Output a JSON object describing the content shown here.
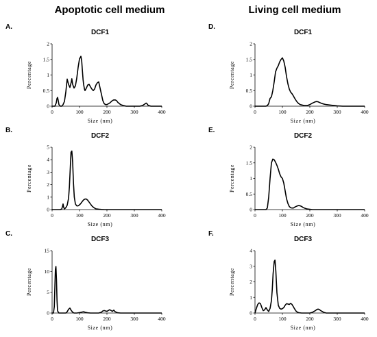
{
  "column_titles": {
    "left": "Apoptotic cell medium",
    "right": "Living cell medium"
  },
  "chart_data": [
    {
      "id": "A",
      "letter": "A.",
      "title": "DCF1",
      "type": "line",
      "xlabel": "Size (nm)",
      "ylabel": "Percentage",
      "xlim": [
        0,
        400
      ],
      "xticks": [
        0,
        100,
        200,
        300,
        400
      ],
      "ylim": [
        0,
        2
      ],
      "yticks": [
        0,
        0.5,
        1,
        1.5,
        2
      ],
      "ytick_labels": [
        "0",
        "0.5",
        "1",
        "1.5",
        "2"
      ],
      "series": [
        {
          "x": [
            0,
            10,
            15,
            18,
            20,
            22,
            25,
            30,
            35,
            40,
            45,
            50,
            55,
            60,
            65,
            70,
            72,
            75,
            80,
            85,
            90,
            95,
            100,
            105,
            108,
            110,
            113,
            115,
            118,
            120,
            125,
            130,
            135,
            140,
            145,
            150,
            155,
            160,
            165,
            170,
            175,
            180,
            185,
            190,
            195,
            200,
            210,
            220,
            225,
            230,
            235,
            240,
            250,
            260,
            270,
            280,
            290,
            300,
            320,
            330,
            340,
            343,
            346,
            350,
            360,
            380,
            400
          ],
          "y": [
            0,
            0,
            0.1,
            0.25,
            0.28,
            0.2,
            0.05,
            0,
            0,
            0.05,
            0.15,
            0.45,
            0.87,
            0.7,
            0.6,
            0.78,
            0.88,
            0.7,
            0.58,
            0.65,
            0.9,
            1.25,
            1.52,
            1.6,
            1.45,
            1.2,
            0.85,
            0.7,
            0.55,
            0.5,
            0.58,
            0.68,
            0.7,
            0.62,
            0.55,
            0.5,
            0.55,
            0.68,
            0.75,
            0.78,
            0.58,
            0.38,
            0.18,
            0.08,
            0.05,
            0.05,
            0.1,
            0.18,
            0.2,
            0.2,
            0.18,
            0.12,
            0.05,
            0.02,
            0,
            0,
            0,
            0,
            0,
            0.02,
            0.08,
            0.1,
            0.08,
            0.03,
            0,
            0,
            0
          ]
        }
      ]
    },
    {
      "id": "B",
      "letter": "B.",
      "title": "DCF2",
      "type": "line",
      "xlabel": "Size (nm)",
      "ylabel": "Percentage",
      "xlim": [
        0,
        400
      ],
      "xticks": [
        0,
        100,
        200,
        300,
        400
      ],
      "ylim": [
        0,
        5
      ],
      "yticks": [
        0,
        1,
        2,
        3,
        4,
        5
      ],
      "ytick_labels": [
        "0",
        "1",
        "2",
        "3",
        "4",
        "5"
      ],
      "series": [
        {
          "x": [
            0,
            30,
            35,
            38,
            40,
            42,
            45,
            50,
            55,
            60,
            63,
            66,
            69,
            72,
            75,
            78,
            81,
            85,
            90,
            95,
            100,
            105,
            110,
            115,
            120,
            125,
            130,
            135,
            140,
            145,
            150,
            155,
            160,
            170,
            180,
            190,
            200,
            250,
            300,
            350,
            400
          ],
          "y": [
            0,
            0,
            0.05,
            0.25,
            0.45,
            0.2,
            0.05,
            0.15,
            0.35,
            0.9,
            1.8,
            3.2,
            4.6,
            4.7,
            3.8,
            2.1,
            1.0,
            0.45,
            0.3,
            0.3,
            0.38,
            0.5,
            0.65,
            0.78,
            0.85,
            0.85,
            0.75,
            0.6,
            0.45,
            0.3,
            0.2,
            0.12,
            0.06,
            0.03,
            0.01,
            0,
            0,
            0,
            0,
            0,
            0
          ]
        }
      ]
    },
    {
      "id": "C",
      "letter": "C.",
      "title": "DCF3",
      "type": "line",
      "xlabel": "Size (nm)",
      "ylabel": "Percentage",
      "xlim": [
        0,
        400
      ],
      "xticks": [
        0,
        100,
        200,
        300,
        400
      ],
      "ylim": [
        0,
        15
      ],
      "yticks": [
        0,
        5,
        10,
        15
      ],
      "ytick_labels": [
        "0",
        "5",
        "10",
        "15"
      ],
      "series": [
        {
          "x": [
            0,
            5,
            8,
            10,
            12,
            14,
            16,
            18,
            20,
            25,
            30,
            40,
            50,
            55,
            60,
            65,
            70,
            75,
            80,
            90,
            100,
            110,
            115,
            120,
            130,
            140,
            150,
            160,
            170,
            180,
            185,
            190,
            195,
            200,
            205,
            210,
            215,
            220,
            225,
            230,
            240,
            250,
            300,
            400
          ],
          "y": [
            0,
            0,
            1.5,
            6,
            10.5,
            11.2,
            8,
            3,
            0.5,
            0,
            0,
            0,
            0,
            0.3,
            0.9,
            1.2,
            0.6,
            0.2,
            0,
            0,
            0.1,
            0.25,
            0.3,
            0.2,
            0.05,
            0,
            0,
            0,
            0,
            0.2,
            0.5,
            0.6,
            0.5,
            0.4,
            0.6,
            0.8,
            0.6,
            0.4,
            0.7,
            0.3,
            0.05,
            0,
            0,
            0
          ]
        }
      ]
    },
    {
      "id": "D",
      "letter": "D.",
      "title": "DCF1",
      "type": "line",
      "xlabel": "Size (nm)",
      "ylabel": "Percentage",
      "xlim": [
        0,
        400
      ],
      "xticks": [
        0,
        100,
        200,
        300,
        400
      ],
      "ylim": [
        0,
        2
      ],
      "yticks": [
        0,
        0.5,
        1,
        1.5,
        2
      ],
      "ytick_labels": [
        "0",
        "0.5",
        "1",
        "1.5",
        "2"
      ],
      "series": [
        {
          "x": [
            0,
            40,
            45,
            50,
            55,
            60,
            65,
            70,
            75,
            80,
            85,
            90,
            95,
            100,
            105,
            110,
            115,
            120,
            125,
            130,
            135,
            140,
            145,
            150,
            155,
            160,
            165,
            170,
            175,
            180,
            190,
            200,
            210,
            220,
            225,
            230,
            240,
            250,
            260,
            270,
            280,
            290,
            300,
            320,
            400
          ],
          "y": [
            0,
            0,
            0.02,
            0.08,
            0.25,
            0.3,
            0.5,
            0.78,
            1.1,
            1.22,
            1.3,
            1.42,
            1.5,
            1.55,
            1.45,
            1.25,
            0.95,
            0.72,
            0.55,
            0.45,
            0.4,
            0.33,
            0.25,
            0.18,
            0.12,
            0.08,
            0.05,
            0.04,
            0.03,
            0.02,
            0.02,
            0.05,
            0.1,
            0.14,
            0.15,
            0.14,
            0.1,
            0.07,
            0.05,
            0.04,
            0.03,
            0.02,
            0.01,
            0,
            0
          ]
        }
      ]
    },
    {
      "id": "E",
      "letter": "E.",
      "title": "DCF2",
      "type": "line",
      "xlabel": "Size (nm)",
      "ylabel": "Percentage",
      "xlim": [
        0,
        400
      ],
      "xticks": [
        0,
        100,
        200,
        300,
        400
      ],
      "ylim": [
        0,
        2
      ],
      "yticks": [
        0,
        0.5,
        1,
        1.5,
        2
      ],
      "ytick_labels": [
        "0",
        "0.5",
        "1",
        "1.5",
        "2"
      ],
      "series": [
        {
          "x": [
            0,
            40,
            45,
            50,
            55,
            60,
            65,
            70,
            75,
            80,
            85,
            90,
            95,
            100,
            105,
            110,
            115,
            120,
            125,
            130,
            135,
            140,
            145,
            150,
            155,
            160,
            165,
            170,
            175,
            180,
            190,
            200,
            210,
            220,
            400
          ],
          "y": [
            0,
            0,
            0.05,
            0.4,
            1.0,
            1.5,
            1.62,
            1.6,
            1.52,
            1.42,
            1.3,
            1.15,
            1.05,
            1.0,
            0.85,
            0.6,
            0.35,
            0.2,
            0.1,
            0.06,
            0.05,
            0.05,
            0.08,
            0.1,
            0.12,
            0.13,
            0.12,
            0.1,
            0.07,
            0.05,
            0.02,
            0.01,
            0,
            0,
            0
          ]
        }
      ]
    },
    {
      "id": "F",
      "letter": "F.",
      "title": "DCF3",
      "type": "line",
      "xlabel": "Size (nm)",
      "ylabel": "Percentage",
      "xlim": [
        0,
        400
      ],
      "xticks": [
        0,
        100,
        200,
        300,
        400
      ],
      "ylim": [
        0,
        4
      ],
      "yticks": [
        0,
        1,
        2,
        3,
        4
      ],
      "ytick_labels": [
        "0",
        "1",
        "2",
        "3",
        "4"
      ],
      "series": [
        {
          "x": [
            0,
            5,
            10,
            15,
            20,
            25,
            30,
            35,
            40,
            45,
            50,
            55,
            60,
            63,
            66,
            70,
            73,
            76,
            80,
            85,
            90,
            95,
            100,
            105,
            110,
            115,
            120,
            125,
            130,
            135,
            140,
            145,
            150,
            155,
            160,
            170,
            180,
            200,
            210,
            220,
            225,
            230,
            235,
            240,
            250,
            260,
            300,
            400
          ],
          "y": [
            0,
            0.3,
            0.55,
            0.65,
            0.6,
            0.35,
            0.15,
            0.2,
            0.35,
            0.2,
            0.1,
            0.3,
            0.8,
            1.5,
            2.5,
            3.3,
            3.4,
            2.7,
            1.3,
            0.5,
            0.3,
            0.25,
            0.28,
            0.35,
            0.5,
            0.6,
            0.58,
            0.55,
            0.62,
            0.55,
            0.4,
            0.25,
            0.12,
            0.05,
            0.02,
            0,
            0,
            0,
            0.05,
            0.15,
            0.22,
            0.25,
            0.22,
            0.15,
            0.05,
            0,
            0,
            0
          ]
        }
      ]
    }
  ]
}
